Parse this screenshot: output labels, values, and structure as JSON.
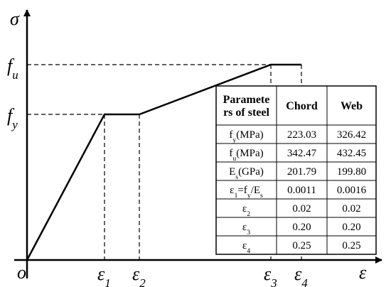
{
  "axes": {
    "y_label": "σ",
    "x_label": "ε",
    "origin": "o",
    "y_marks": [
      [
        "f",
        "u"
      ],
      [
        "f",
        "y"
      ]
    ],
    "x_marks": [
      [
        "ε",
        "1"
      ],
      [
        "ε",
        "2"
      ],
      [
        "ε",
        "3"
      ],
      [
        "ε",
        "4"
      ]
    ]
  },
  "table": {
    "header": [
      [
        "Paramete",
        "rs of steel"
      ],
      [
        "Chord"
      ],
      [
        "Web"
      ]
    ],
    "rows": [
      [
        [
          "f",
          "y",
          "(MPa)"
        ],
        "223.03",
        "326.42"
      ],
      [
        [
          "f",
          "u",
          "(MPa)"
        ],
        "342.47",
        "432.45"
      ],
      [
        [
          "E",
          "s",
          "(GPa)"
        ],
        "201.79",
        "199.80"
      ],
      [
        [
          "ε",
          "1",
          "=f",
          "y",
          "/E",
          "s"
        ],
        "0.0011",
        "0.0016"
      ],
      [
        [
          "ε",
          "2"
        ],
        "0.02",
        "0.02"
      ],
      [
        [
          "ε",
          "3"
        ],
        "0.20",
        "0.20"
      ],
      [
        [
          "ε",
          "4"
        ],
        "0.25",
        "0.25"
      ]
    ]
  }
}
